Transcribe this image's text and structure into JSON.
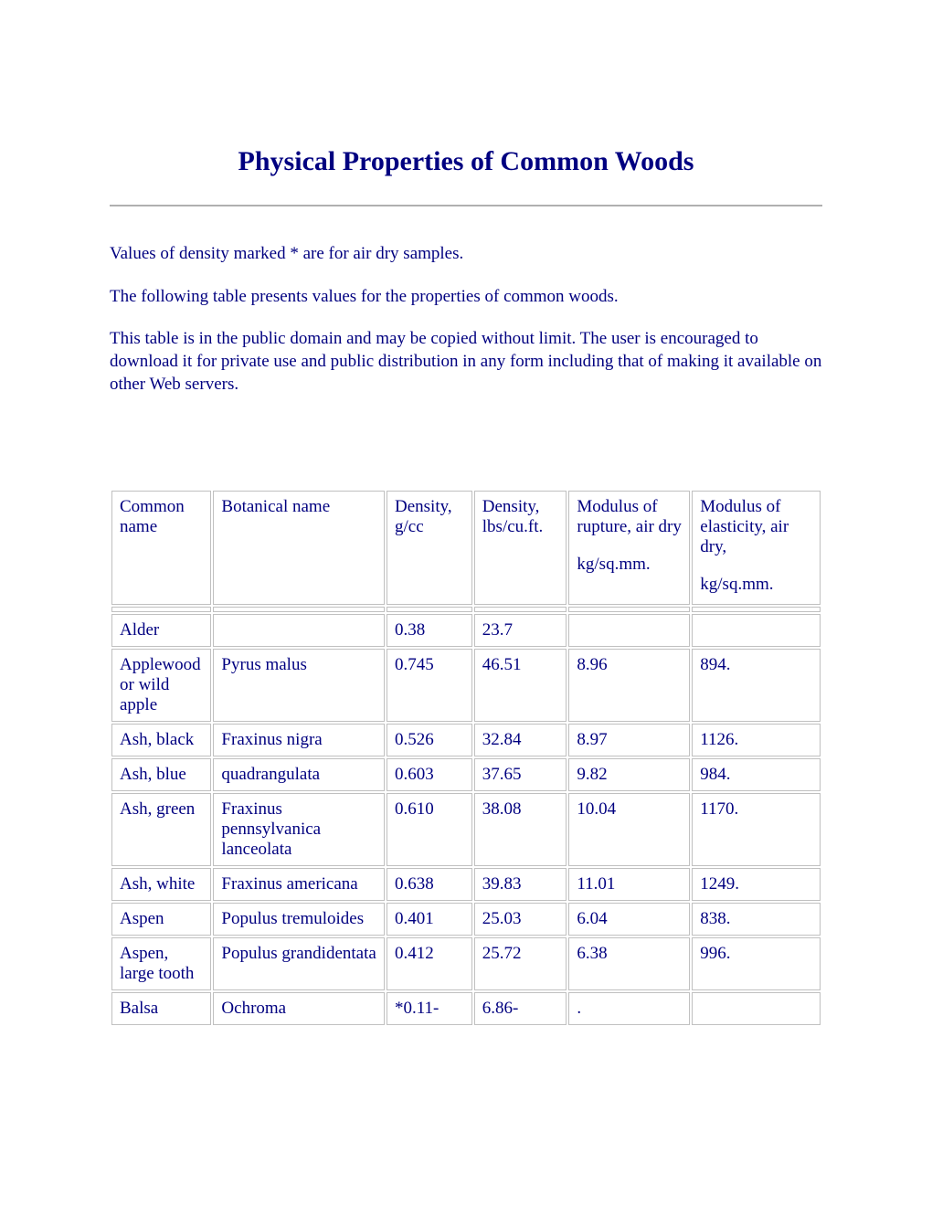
{
  "title": "Physical Properties of Common Woods",
  "intro": {
    "p1": "Values of density marked * are for air dry samples.",
    "p2": "The following table presents values for the properties of common woods.",
    "p3": "This table is in the public domain and may be copied without limit. The user is encouraged to download it for private use and public distribution in any form including that of making it available on other Web servers."
  },
  "table": {
    "columns": [
      {
        "label": "Common name",
        "unit": ""
      },
      {
        "label": "Botanical name",
        "unit": ""
      },
      {
        "label": "Density, g/cc",
        "unit": ""
      },
      {
        "label": "Density, lbs/cu.ft.",
        "unit": ""
      },
      {
        "label": "Modulus of rupture, air dry",
        "unit": "kg/sq.mm."
      },
      {
        "label": "Modulus of elasticity, air dry,",
        "unit": "kg/sq.mm."
      }
    ],
    "rows": [
      [
        "Alder",
        "",
        "0.38",
        "23.7",
        "",
        ""
      ],
      [
        "Applewood or wild apple",
        "Pyrus malus",
        "0.745",
        "46.51",
        "8.96",
        "894."
      ],
      [
        "Ash, black",
        "Fraxinus nigra",
        "0.526",
        "32.84",
        "8.97",
        "1126."
      ],
      [
        "Ash, blue",
        "quadrangulata",
        "0.603",
        "37.65",
        "9.82",
        "984."
      ],
      [
        "Ash, green",
        "Fraxinus pennsylvanica lanceolata",
        "0.610",
        "38.08",
        "10.04",
        "1170."
      ],
      [
        "Ash, white",
        "Fraxinus americana",
        "0.638",
        "39.83",
        "11.01",
        "1249."
      ],
      [
        "Aspen",
        "Populus tremuloides",
        "0.401",
        "25.03",
        "6.04",
        "838."
      ],
      [
        "Aspen, large tooth",
        "Populus grandidentata",
        "0.412",
        "25.72",
        "6.38",
        "996."
      ],
      [
        "Balsa",
        "Ochroma",
        "*0.11-",
        "6.86-",
        ".",
        ""
      ]
    ],
    "column_widths_pct": [
      14,
      24,
      12,
      13,
      17,
      18
    ],
    "border_color": "#c0c0c0",
    "text_color": "#000080",
    "background_color": "#ffffff",
    "font_size_pt": 14
  }
}
